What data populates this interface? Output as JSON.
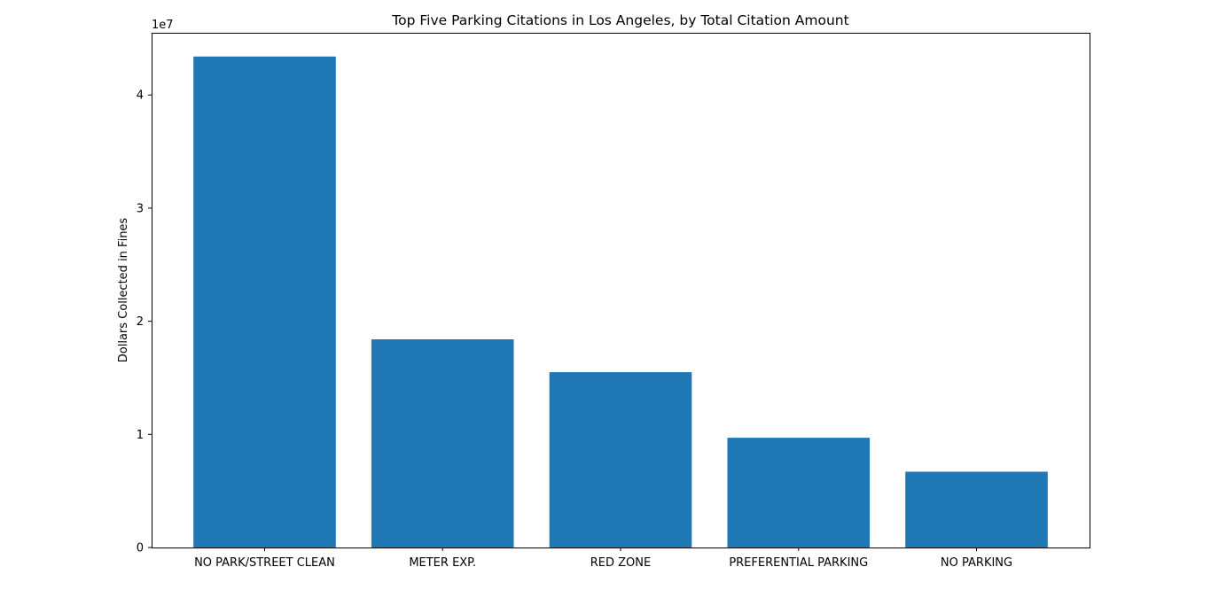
{
  "chart_data": {
    "type": "bar",
    "title": "Top Five Parking Citations in Los Angeles, by Total Citation Amount",
    "xlabel": "",
    "ylabel": "Dollars Collected in Fines",
    "y_offset_text": "1e7",
    "y_scale_factor": 10000000,
    "categories": [
      "NO PARK/STREET CLEAN",
      "METER EXP.",
      "RED ZONE",
      "PREFERENTIAL PARKING",
      "NO PARKING"
    ],
    "values": [
      43400000,
      18400000,
      15500000,
      9700000,
      6700000
    ],
    "ylim": [
      0,
      45500000
    ],
    "yticks": [
      0,
      10000000,
      20000000,
      30000000,
      40000000
    ],
    "ytick_labels": [
      "0",
      "1",
      "2",
      "3",
      "4"
    ],
    "bar_color": "#1f77b4",
    "grid": false,
    "legend": "none"
  }
}
